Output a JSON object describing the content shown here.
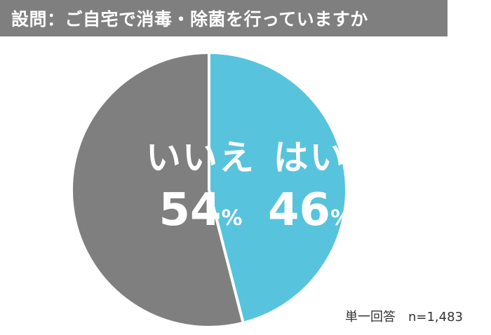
{
  "title": "設問：ご自宅で消毒・除菌を行っていますか",
  "chart_data": {
    "type": "pie",
    "slices": [
      {
        "label": "はい",
        "value": 46,
        "value_text": "46",
        "color": "#57c3dc"
      },
      {
        "label": "いいえ",
        "value": 54,
        "value_text": "54",
        "color": "#7f7f7f"
      }
    ],
    "unit": "%",
    "start": "12 o'clock",
    "direction": "clockwise"
  },
  "footnote": "単一回答　n=1,483"
}
